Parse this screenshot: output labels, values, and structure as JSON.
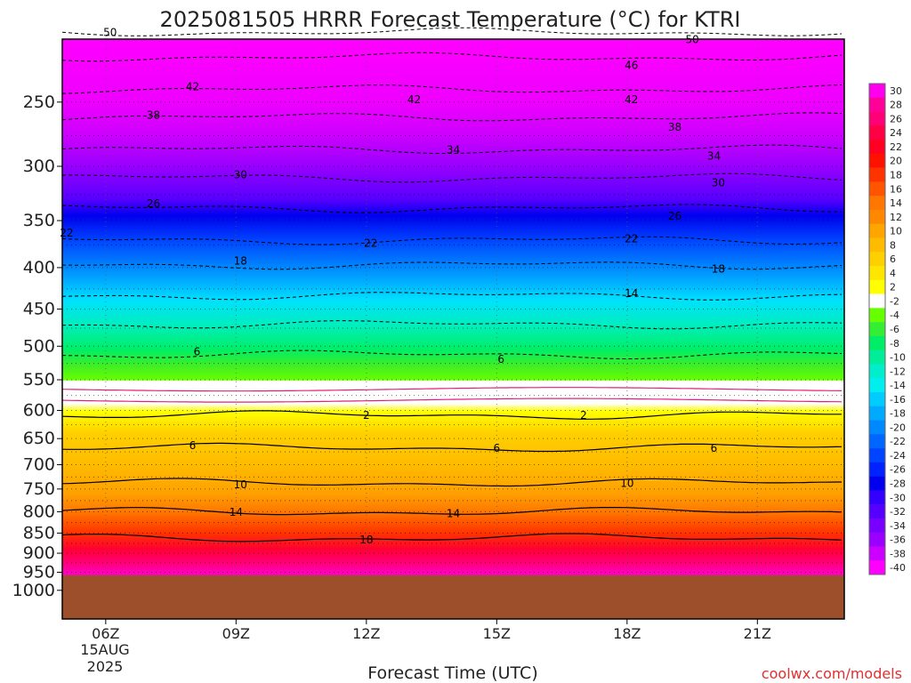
{
  "chart_data": {
    "type": "heatmap",
    "title": "2025081505 HRRR Forecast Temperature (°C) for KTRI",
    "xlabel": "Forecast Time (UTC)",
    "ylabel": "",
    "credit": "coolwx.com/models",
    "x_ticks": [
      {
        "hour": 6,
        "label": "06Z"
      },
      {
        "hour": 9,
        "label": "09Z"
      },
      {
        "hour": 12,
        "label": "12Z"
      },
      {
        "hour": 15,
        "label": "15Z"
      },
      {
        "hour": 18,
        "label": "18Z"
      },
      {
        "hour": 21,
        "label": "21Z"
      }
    ],
    "x_date_label": [
      "15AUG",
      "2025"
    ],
    "xlim": [
      5,
      23
    ],
    "y_axis": "pressure (hPa), log scale, inverted",
    "ylim": [
      1050,
      200
    ],
    "y_ticks": [
      {
        "p": 250,
        "label": "250"
      },
      {
        "p": 300,
        "label": "300"
      },
      {
        "p": 350,
        "label": "350"
      },
      {
        "p": 400,
        "label": "400"
      },
      {
        "p": 450,
        "label": "450"
      },
      {
        "p": 500,
        "label": "500"
      },
      {
        "p": 550,
        "label": "550"
      },
      {
        "p": 600,
        "label": "600"
      },
      {
        "p": 650,
        "label": "650"
      },
      {
        "p": 700,
        "label": "700"
      },
      {
        "p": 750,
        "label": "750"
      },
      {
        "p": 800,
        "label": "800"
      },
      {
        "p": 850,
        "label": "850"
      },
      {
        "p": 900,
        "label": "900"
      },
      {
        "p": 950,
        "label": "950"
      },
      {
        "p": 1000,
        "label": "1000"
      }
    ],
    "grid": "dotted",
    "ground_pressure": 958,
    "ground_color": "#9c4f2a",
    "contour_levels_labeled": [
      {
        "value": 50,
        "label": "-50",
        "dashed": true,
        "p": 205
      },
      {
        "value": 46,
        "label": "-46",
        "dashed": true,
        "p": 220
      },
      {
        "value": 42,
        "label": "-42",
        "dashed": true,
        "p": 241
      },
      {
        "value": 38,
        "label": "-38",
        "dashed": true,
        "p": 261
      },
      {
        "value": 34,
        "label": "-34",
        "dashed": true,
        "p": 286
      },
      {
        "value": 30,
        "label": "-30",
        "dashed": true,
        "p": 310
      },
      {
        "value": 26,
        "label": "-26",
        "dashed": true,
        "p": 338
      },
      {
        "value": 22,
        "label": "-22",
        "dashed": true,
        "p": 370
      },
      {
        "value": 18,
        "label": "-18",
        "dashed": true,
        "p": 397
      },
      {
        "value": 14,
        "label": "-14",
        "dashed": true,
        "p": 433
      },
      {
        "value": 10,
        "label": "-10",
        "dashed": true,
        "p": 470
      },
      {
        "value": 6,
        "label": "-6",
        "dashed": true,
        "p": 512
      },
      {
        "value": 2,
        "label": "2",
        "dashed": false,
        "p": 608
      },
      {
        "value": 6,
        "label": "6",
        "dashed": false,
        "p": 667
      },
      {
        "value": 10,
        "label": "10",
        "dashed": false,
        "p": 737
      },
      {
        "value": 14,
        "label": "14",
        "dashed": false,
        "p": 800
      },
      {
        "value": 18,
        "label": "18",
        "dashed": false,
        "p": 862
      }
    ],
    "contour_labels": [
      {
        "text": "50",
        "hour": 6.1,
        "p": 205
      },
      {
        "text": "50",
        "hour": 19.5,
        "p": 209
      },
      {
        "text": "46",
        "hour": 18.1,
        "p": 225
      },
      {
        "text": "42",
        "hour": 8.0,
        "p": 239
      },
      {
        "text": "42",
        "hour": 13.1,
        "p": 248
      },
      {
        "text": "42",
        "hour": 18.1,
        "p": 248
      },
      {
        "text": "38",
        "hour": 7.1,
        "p": 259
      },
      {
        "text": "38",
        "hour": 19.1,
        "p": 268
      },
      {
        "text": "34",
        "hour": 14.0,
        "p": 286
      },
      {
        "text": "34",
        "hour": 20.0,
        "p": 291
      },
      {
        "text": "30",
        "hour": 9.1,
        "p": 307
      },
      {
        "text": "30",
        "hour": 20.1,
        "p": 314
      },
      {
        "text": "26",
        "hour": 7.1,
        "p": 333
      },
      {
        "text": "26",
        "hour": 19.1,
        "p": 345
      },
      {
        "text": "22",
        "hour": 5.1,
        "p": 362
      },
      {
        "text": "22",
        "hour": 12.1,
        "p": 373
      },
      {
        "text": "22",
        "hour": 18.1,
        "p": 368
      },
      {
        "text": "18",
        "hour": 9.1,
        "p": 392
      },
      {
        "text": "18",
        "hour": 20.1,
        "p": 401
      },
      {
        "text": "14",
        "hour": 18.1,
        "p": 430
      },
      {
        "text": "6",
        "hour": 8.1,
        "p": 507
      },
      {
        "text": "6",
        "hour": 15.1,
        "p": 518
      },
      {
        "text": "2",
        "hour": 12.0,
        "p": 608
      },
      {
        "text": "2",
        "hour": 17.0,
        "p": 608
      },
      {
        "text": "6",
        "hour": 8.0,
        "p": 662
      },
      {
        "text": "6",
        "hour": 15.0,
        "p": 667
      },
      {
        "text": "6",
        "hour": 20.0,
        "p": 667
      },
      {
        "text": "10",
        "hour": 9.1,
        "p": 740
      },
      {
        "text": "10",
        "hour": 18.0,
        "p": 737
      },
      {
        "text": "14",
        "hour": 9.0,
        "p": 800
      },
      {
        "text": "14",
        "hour": 14.0,
        "p": 803
      },
      {
        "text": "18",
        "hour": 12.0,
        "p": 865
      }
    ],
    "colorbar": {
      "bins": [
        {
          "label": "30",
          "color": "#ff00ee"
        },
        {
          "label": "28",
          "color": "#ff0099"
        },
        {
          "label": "26",
          "color": "#ff0077"
        },
        {
          "label": "24",
          "color": "#ff0044"
        },
        {
          "label": "22",
          "color": "#ff0022"
        },
        {
          "label": "20",
          "color": "#ff1100"
        },
        {
          "label": "18",
          "color": "#ff3300"
        },
        {
          "label": "16",
          "color": "#ff5500"
        },
        {
          "label": "14",
          "color": "#ff7700"
        },
        {
          "label": "12",
          "color": "#ff8800"
        },
        {
          "label": "10",
          "color": "#ffa500"
        },
        {
          "label": "8",
          "color": "#ffbb00"
        },
        {
          "label": "6",
          "color": "#ffd000"
        },
        {
          "label": "4",
          "color": "#ffe600"
        },
        {
          "label": "2",
          "color": "#ffff00"
        },
        {
          "label": "-2",
          "color": "#ffffff"
        },
        {
          "label": "-4",
          "color": "#66ff00"
        },
        {
          "label": "-6",
          "color": "#33ee33"
        },
        {
          "label": "-8",
          "color": "#00ee66"
        },
        {
          "label": "-10",
          "color": "#00ee99"
        },
        {
          "label": "-12",
          "color": "#00eecc"
        },
        {
          "label": "-14",
          "color": "#00eeee"
        },
        {
          "label": "-16",
          "color": "#00ccff"
        },
        {
          "label": "-18",
          "color": "#00aaff"
        },
        {
          "label": "-20",
          "color": "#0088ff"
        },
        {
          "label": "-22",
          "color": "#0066ff"
        },
        {
          "label": "-24",
          "color": "#0044ff"
        },
        {
          "label": "-26",
          "color": "#0022ff"
        },
        {
          "label": "-28",
          "color": "#0000ee"
        },
        {
          "label": "-30",
          "color": "#3300ff"
        },
        {
          "label": "-32",
          "color": "#5500ff"
        },
        {
          "label": "-34",
          "color": "#7700ff"
        },
        {
          "label": "-36",
          "color": "#9900ff"
        },
        {
          "label": "-38",
          "color": "#cc00ff"
        },
        {
          "label": "-40",
          "color": "#ff00ff"
        }
      ]
    }
  }
}
